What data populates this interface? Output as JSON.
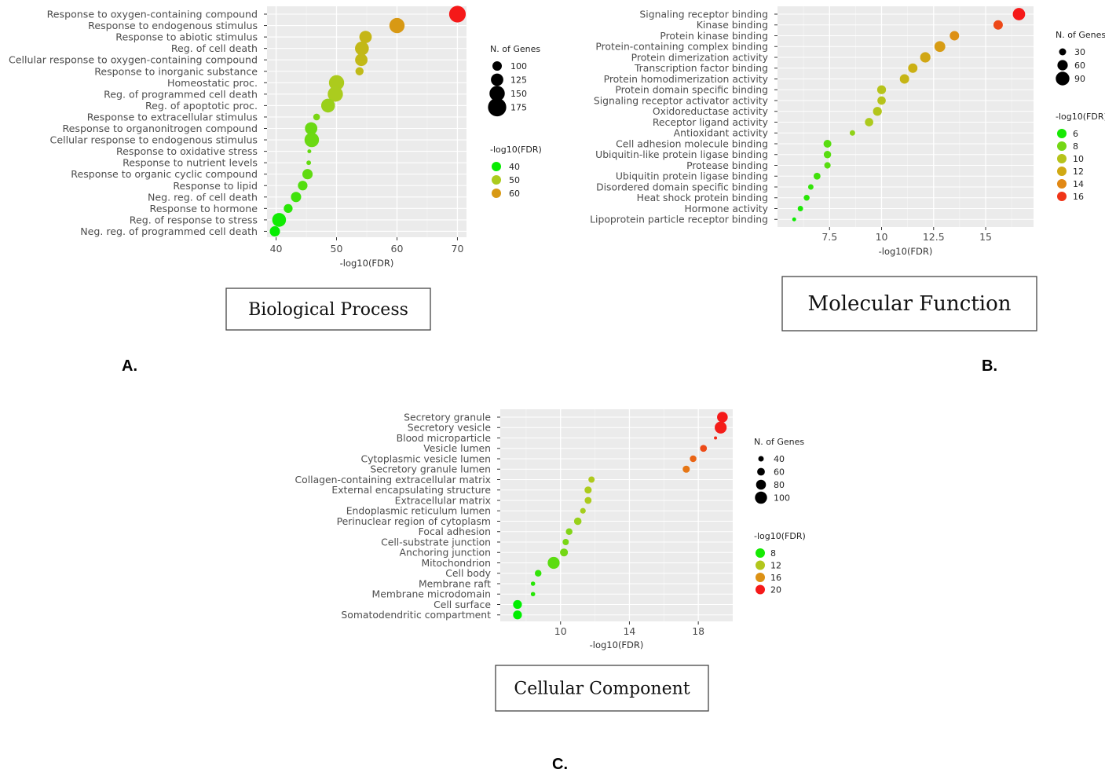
{
  "chart_data": [
    {
      "type": "scatter",
      "panel_letter": "A.",
      "label_box": "Biological Process",
      "xlabel": "-log10(FDR)",
      "xlim": [
        38.5,
        71.5
      ],
      "xticks": [
        40,
        50,
        60,
        70
      ],
      "grid": true,
      "size_legend": {
        "title": "N. of Genes",
        "values": [
          100,
          125,
          150,
          175
        ]
      },
      "color_legend": {
        "title": "-log10(FDR)",
        "values": [
          40,
          50,
          60
        ]
      },
      "categories": [
        "Response to oxygen-containing compound",
        "Response to endogenous stimulus",
        "Response to abiotic stimulus",
        "Reg. of cell death",
        "Cellular response to oxygen-containing compound",
        "Response to inorganic substance",
        "Homeostatic proc.",
        "Reg. of programmed cell death",
        "Reg. of apoptotic proc.",
        "Response to extracellular stimulus",
        "Response to organonitrogen compound",
        "Cellular response to endogenous stimulus",
        "Response to oxidative stress",
        "Response to nutrient levels",
        "Response to organic cyclic compound",
        "Response to lipid",
        "Neg. reg. of cell death",
        "Response to hormone",
        "Reg. of response to stress",
        "Neg. reg. of programmed cell death"
      ],
      "x": [
        70,
        60,
        54.8,
        54.2,
        54.1,
        53.8,
        50,
        49.8,
        48.6,
        46.7,
        45.8,
        45.9,
        45.5,
        45.4,
        45.2,
        44.4,
        43.3,
        42,
        40.5,
        39.8
      ],
      "genes": [
        170,
        160,
        140,
        150,
        140,
        110,
        160,
        160,
        150,
        100,
        140,
        155,
        80,
        85,
        125,
        120,
        125,
        115,
        150,
        125
      ]
    },
    {
      "type": "scatter",
      "panel_letter": "B.",
      "label_box": "Molecular Function",
      "xlabel": "-log10(FDR)",
      "xlim": [
        5.0,
        17.3
      ],
      "xticks": [
        7.5,
        10.0,
        12.5,
        15.0
      ],
      "grid": true,
      "size_legend": {
        "title": "N. of Genes",
        "values": [
          30,
          60,
          90
        ]
      },
      "color_legend": {
        "title": "-log10(FDR)",
        "values": [
          6,
          8,
          10,
          12,
          14,
          16
        ]
      },
      "categories": [
        "Signaling receptor binding",
        "Kinase binding",
        "Protein kinase binding",
        "Protein-containing complex binding",
        "Protein dimerization activity",
        "Transcription factor binding",
        "Protein homodimerization activity",
        "Protein domain specific binding",
        "Signaling receptor activator activity",
        "Oxidoreductase activity",
        "Receptor ligand activity",
        "Antioxidant activity",
        "Cell adhesion molecule binding",
        "Ubiquitin-like protein ligase binding",
        "Protease binding",
        "Ubiquitin protein ligase binding",
        "Disordered domain specific binding",
        "Heat shock protein binding",
        "Hormone activity",
        "Lipoprotein particle receptor binding"
      ],
      "x": [
        16.6,
        15.6,
        13.5,
        12.8,
        12.1,
        11.5,
        11.1,
        10.0,
        10.0,
        9.8,
        9.4,
        8.6,
        7.4,
        7.4,
        7.4,
        6.9,
        6.6,
        6.4,
        6.1,
        5.8
      ],
      "genes": [
        100,
        70,
        70,
        85,
        80,
        70,
        70,
        65,
        60,
        65,
        60,
        30,
        55,
        50,
        40,
        45,
        30,
        35,
        30,
        15
      ]
    },
    {
      "type": "scatter",
      "panel_letter": "C.",
      "label_box": "Cellular Component",
      "xlabel": "-log10(FDR)",
      "xlim": [
        6.5,
        20.0
      ],
      "xticks": [
        10,
        14,
        18
      ],
      "grid": true,
      "size_legend": {
        "title": "N. of Genes",
        "values": [
          40,
          60,
          80,
          100
        ]
      },
      "color_legend": {
        "title": "-log10(FDR)",
        "values": [
          8,
          12,
          16,
          20
        ]
      },
      "categories": [
        "Secretory granule",
        "Secretory vesicle",
        "Blood microparticle",
        "Vesicle lumen",
        "Cytoplasmic vesicle lumen",
        "Secretory granule lumen",
        "Collagen-containing extracellular matrix",
        "External encapsulating structure",
        "Extracellular matrix",
        "Endoplasmic reticulum lumen",
        "Perinuclear region of cytoplasm",
        "Focal adhesion",
        "Cell-substrate junction",
        "Anchoring junction",
        "Mitochondrion",
        "Cell body",
        "Membrane raft",
        "Membrane microdomain",
        "Cell surface",
        "Somatodendritic compartment"
      ],
      "x": [
        19.4,
        19.3,
        19.0,
        18.3,
        17.7,
        17.3,
        11.8,
        11.6,
        11.6,
        11.3,
        11.0,
        10.5,
        10.3,
        10.2,
        9.6,
        8.7,
        8.4,
        8.4,
        7.5,
        7.5
      ],
      "genes": [
        80,
        90,
        20,
        50,
        48,
        52,
        45,
        52,
        50,
        40,
        55,
        48,
        45,
        58,
        90,
        48,
        30,
        30,
        65,
        65
      ]
    }
  ]
}
